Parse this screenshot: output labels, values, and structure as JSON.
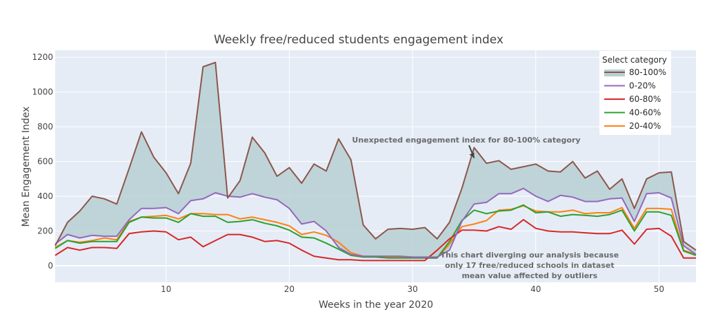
{
  "chart_data": {
    "type": "line",
    "title": "Weekly free/reduced students engagement index",
    "xlabel": "Weeks in the year 2020",
    "ylabel": "Mean Engagement Index",
    "xlim": [
      1,
      53
    ],
    "ylim": [
      -95,
      1240
    ],
    "xticks": [
      10,
      20,
      30,
      40,
      50
    ],
    "yticks": [
      0,
      200,
      400,
      600,
      800,
      1000,
      1200
    ],
    "grid": true,
    "legend": {
      "title": "Select category",
      "position": "top-right"
    },
    "x": [
      1,
      2,
      3,
      4,
      5,
      6,
      7,
      8,
      9,
      10,
      11,
      12,
      13,
      14,
      15,
      16,
      17,
      18,
      19,
      20,
      21,
      22,
      23,
      24,
      25,
      26,
      27,
      28,
      29,
      30,
      31,
      32,
      33,
      34,
      35,
      36,
      37,
      38,
      39,
      40,
      41,
      42,
      43,
      44,
      45,
      46,
      47,
      48,
      49,
      50,
      51,
      52,
      53
    ],
    "series": [
      {
        "name": "80-100%",
        "color": "#8c564b",
        "fill": true,
        "values": [
          115,
          250,
          315,
          400,
          385,
          355,
          560,
          770,
          625,
          535,
          415,
          590,
          1145,
          1170,
          390,
          490,
          740,
          650,
          515,
          565,
          475,
          585,
          545,
          730,
          610,
          235,
          155,
          210,
          215,
          210,
          220,
          155,
          250,
          445,
          680,
          590,
          605,
          555,
          570,
          585,
          545,
          540,
          600,
          505,
          545,
          440,
          500,
          330,
          500,
          535,
          540,
          140,
          90
        ]
      },
      {
        "name": "0-20%",
        "color": "#9467bd",
        "values": [
          125,
          180,
          160,
          175,
          170,
          170,
          265,
          330,
          330,
          335,
          300,
          375,
          385,
          420,
          400,
          395,
          415,
          395,
          380,
          330,
          240,
          255,
          200,
          105,
          65,
          55,
          55,
          55,
          55,
          50,
          50,
          50,
          90,
          255,
          355,
          365,
          415,
          415,
          445,
          400,
          370,
          405,
          395,
          370,
          370,
          385,
          390,
          255,
          415,
          420,
          390,
          115,
          65
        ]
      },
      {
        "name": "60-80%",
        "color": "#d62728",
        "values": [
          60,
          105,
          90,
          105,
          105,
          100,
          185,
          195,
          200,
          195,
          150,
          165,
          110,
          145,
          180,
          180,
          165,
          140,
          145,
          130,
          90,
          55,
          45,
          35,
          35,
          30,
          30,
          30,
          30,
          30,
          30,
          90,
          155,
          205,
          205,
          200,
          225,
          210,
          265,
          215,
          200,
          195,
          195,
          190,
          185,
          185,
          205,
          125,
          210,
          215,
          170,
          45,
          45
        ]
      },
      {
        "name": "40-60%",
        "color": "#2ca02c",
        "values": [
          100,
          145,
          130,
          140,
          140,
          140,
          250,
          280,
          275,
          275,
          250,
          300,
          285,
          285,
          250,
          255,
          265,
          245,
          230,
          205,
          165,
          160,
          130,
          95,
          60,
          50,
          50,
          45,
          45,
          45,
          45,
          45,
          140,
          260,
          320,
          300,
          315,
          320,
          350,
          305,
          310,
          285,
          295,
          290,
          285,
          295,
          320,
          200,
          310,
          310,
          290,
          85,
          60
        ]
      },
      {
        "name": "20-40%",
        "color": "#ff7f0e",
        "values": [
          105,
          145,
          135,
          145,
          160,
          150,
          255,
          280,
          285,
          290,
          270,
          300,
          300,
          295,
          295,
          270,
          280,
          265,
          250,
          230,
          180,
          195,
          175,
          135,
          75,
          55,
          50,
          50,
          50,
          50,
          45,
          45,
          125,
          225,
          240,
          260,
          320,
          325,
          345,
          315,
          310,
          310,
          320,
          300,
          305,
          305,
          335,
          215,
          330,
          330,
          325,
          90,
          65
        ]
      }
    ],
    "annotations": [
      {
        "text": "Unexpected engagement index for 80-100% category",
        "x": 35,
        "y": 620,
        "arrow": true
      },
      {
        "lines": [
          "This chart diverging our analysis because",
          "only 17 free/reduced schools in dataset",
          "mean value affected by outliers"
        ],
        "x": 39.5,
        "y": 40
      }
    ],
    "colors": {
      "plot_bg": "#e5ecf6",
      "grid": "#ffffff",
      "fill": "#b7d0d2"
    }
  }
}
